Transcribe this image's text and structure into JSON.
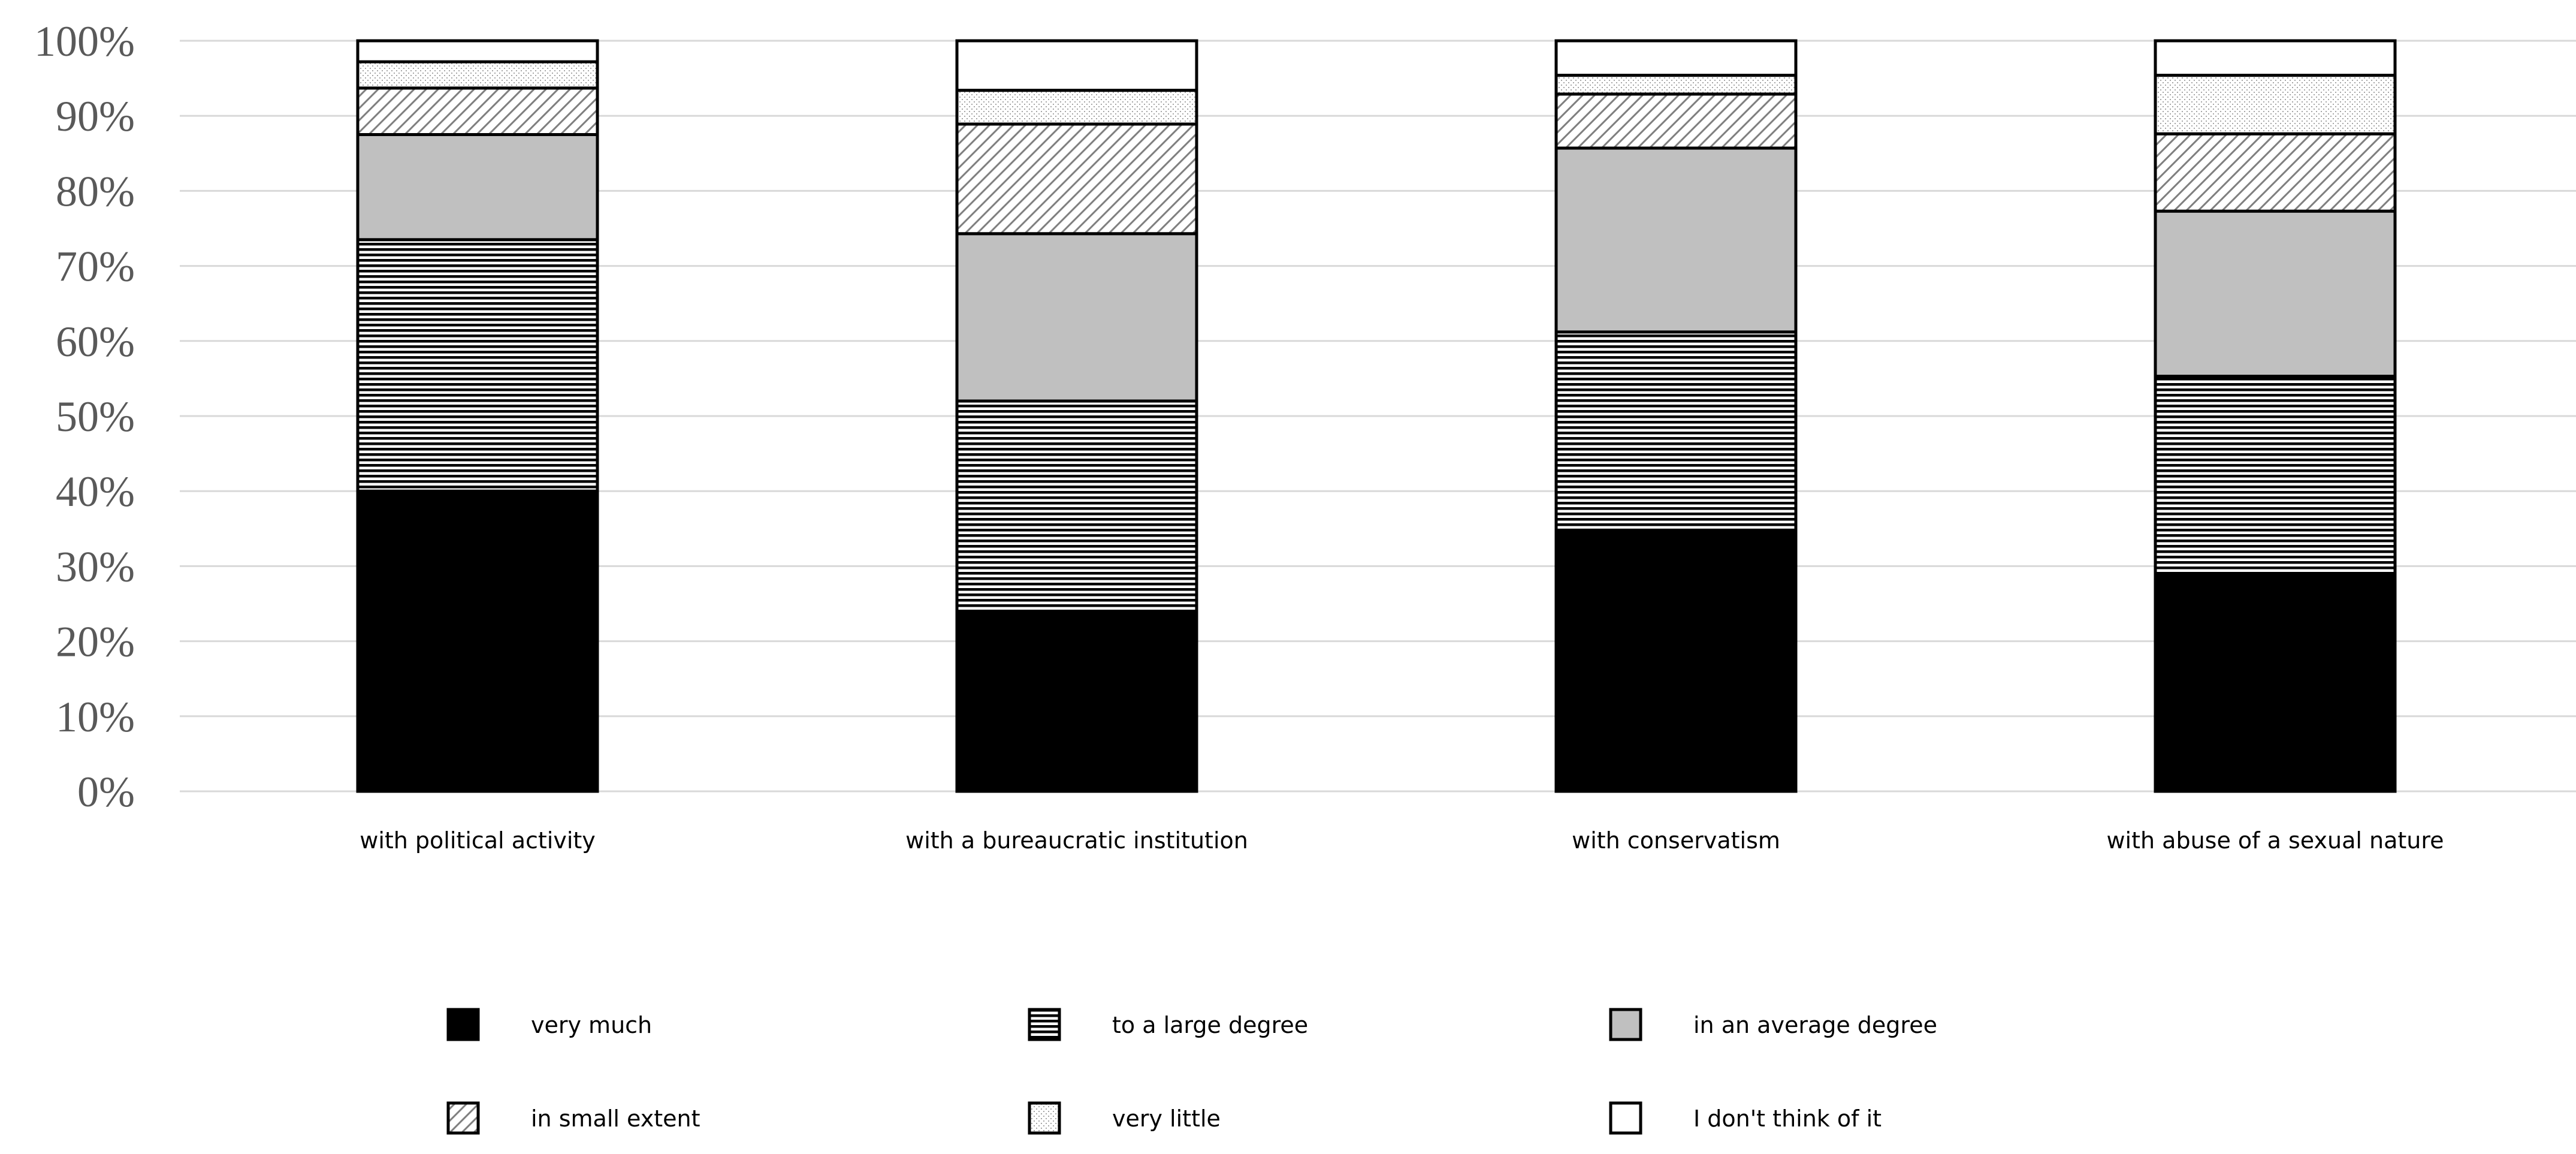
{
  "chart_data": {
    "type": "bar",
    "stacked": true,
    "title": "",
    "xlabel": "",
    "ylabel": "",
    "ylim": [
      0,
      100
    ],
    "yticks": [
      "0%",
      "10%",
      "20%",
      "30%",
      "40%",
      "50%",
      "60%",
      "70%",
      "80%",
      "90%",
      "100%"
    ],
    "grid": true,
    "legend_position": "bottom",
    "categories": [
      "with political activity",
      "with a bureaucratic institution",
      "with conservatism",
      "with abuse of a sexual nature"
    ],
    "series": [
      {
        "name": "very much",
        "pattern": "solid-black",
        "values": [
          40,
          24,
          34.8,
          28.7
        ]
      },
      {
        "name": "to a large degree",
        "pattern": "horizontal-lines",
        "values": [
          33.5,
          28,
          26.4,
          26.6
        ]
      },
      {
        "name": "in an average degree",
        "pattern": "solid-gray",
        "values": [
          14,
          22.3,
          24.5,
          22
        ]
      },
      {
        "name": "in small extent",
        "pattern": "diagonal-hatch",
        "values": [
          6.2,
          14.6,
          7.2,
          10.3
        ]
      },
      {
        "name": "very little",
        "pattern": "dotted",
        "values": [
          3.5,
          4.5,
          2.5,
          7.8
        ]
      },
      {
        "name": "I don't think of it",
        "pattern": "white",
        "values": [
          2.8,
          6.6,
          4.6,
          4.6
        ]
      }
    ]
  },
  "colors": {
    "very_much": "#000000",
    "average": "#c0c0c0",
    "grid": "#d9d9d9",
    "axis_text": "#595959"
  }
}
